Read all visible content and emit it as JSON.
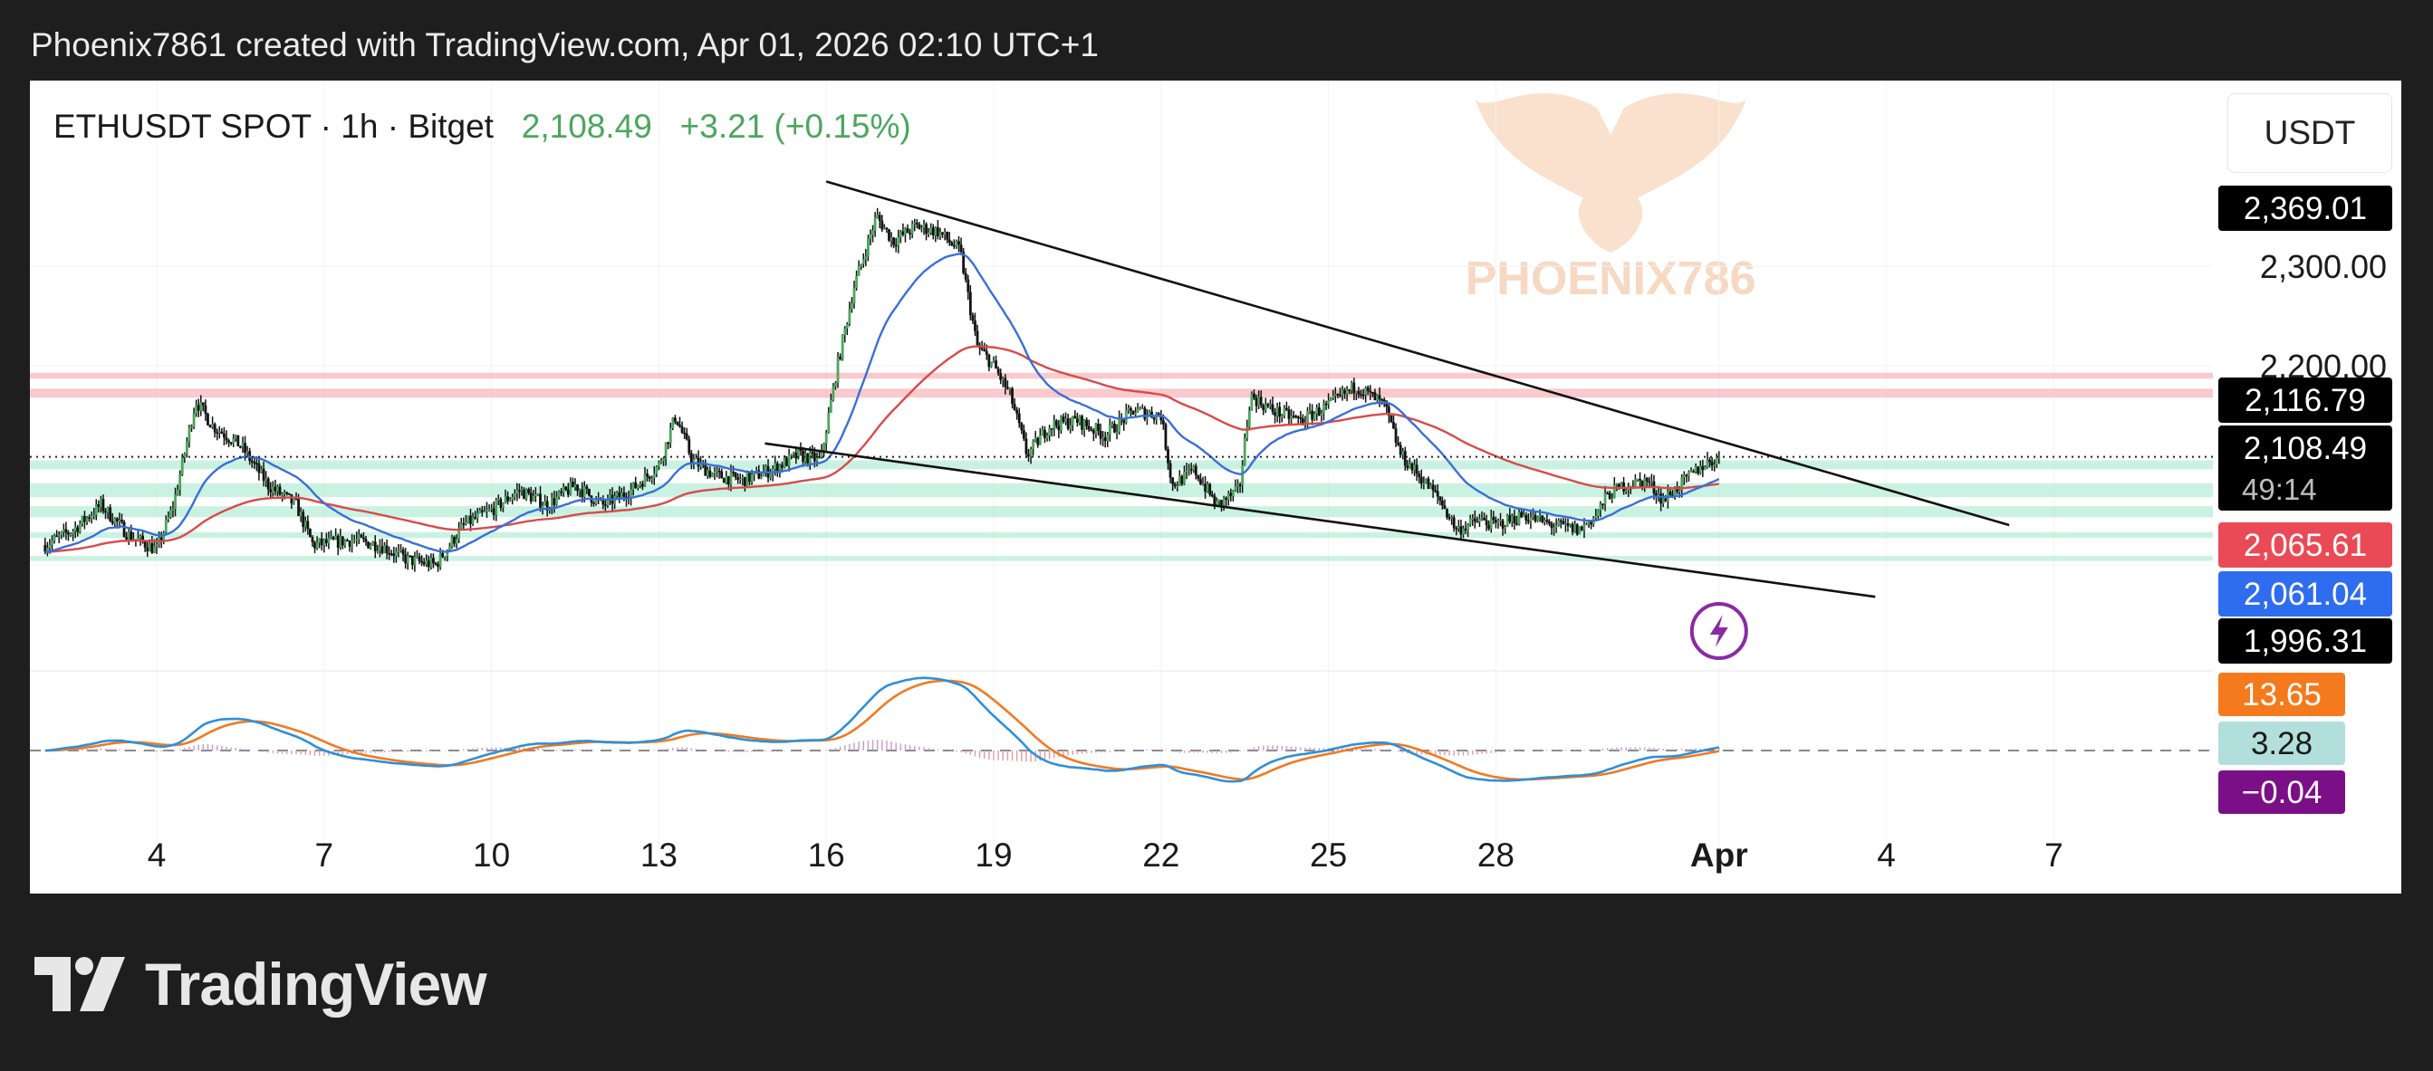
{
  "header": {
    "author_line": "Phoenix7861 created with TradingView.com, Apr 01, 2026 02:10 UTC+1"
  },
  "legend": {
    "symbol": "ETHUSDT SPOT · 1h · Bitget",
    "price": "2,108.49",
    "change": "+3.21 (+0.15%)"
  },
  "currency_button": "USDT",
  "watermark_text": "PHOENIX786",
  "footer_brand": "TradingView",
  "colors": {
    "up": "#4ca65e",
    "ma_fast": "#3a6fd8",
    "ma_slow": "#d94a4a",
    "macd": "#2f8fd8",
    "signal": "#f07a22",
    "resistance_zone": "#f6a6ad",
    "support_zone": "#9fe8cb",
    "lightning": "#8a2aa8"
  },
  "price_tags": [
    {
      "label": "2,369.01",
      "bg": "#000000",
      "fg": "#ffffff",
      "value": 2369.01
    },
    {
      "label": "2,116.79",
      "bg": "#000000",
      "fg": "#ffffff",
      "value": 2116.79
    },
    {
      "label": "2,108.49",
      "sub": "49:14",
      "bg": "#000000",
      "fg": "#ffffff",
      "value": 2108.49
    },
    {
      "label": "2,065.61",
      "bg": "#ea4a55",
      "fg": "#ffffff",
      "value": 2065.61
    },
    {
      "label": "2,061.04",
      "bg": "#2e6cf0",
      "fg": "#ffffff",
      "value": 2061.04
    },
    {
      "label": "1,996.31",
      "bg": "#000000",
      "fg": "#ffffff",
      "value": 1996.31
    }
  ],
  "indicator_tags": [
    {
      "label": "13.65",
      "bg": "#f47a1d",
      "fg": "#ffffff"
    },
    {
      "label": "3.28",
      "bg": "#b2dfdb",
      "fg": "#1a1a1a"
    },
    {
      "label": "−0.04",
      "bg": "#7b0f87",
      "fg": "#ffffff"
    }
  ],
  "chart_data": {
    "type": "candlestick",
    "symbol": "ETHUSDT SPOT",
    "interval": "1h",
    "exchange": "Bitget",
    "last_price": 2108.49,
    "x_tick_labels": [
      "4",
      "7",
      "10",
      "13",
      "16",
      "19",
      "22",
      "25",
      "28",
      "Apr",
      "4",
      "7"
    ],
    "y_tick_labels": [
      "2,300.00",
      "2,200.00"
    ],
    "y_range": [
      1960,
      2420
    ],
    "horizontal_zones": [
      {
        "kind": "resistance",
        "low": 2168,
        "high": 2177
      },
      {
        "kind": "resistance",
        "low": 2187,
        "high": 2193
      },
      {
        "kind": "support",
        "low": 2096,
        "high": 2105
      },
      {
        "kind": "support",
        "low": 2068,
        "high": 2082
      },
      {
        "kind": "support",
        "low": 2048,
        "high": 2059
      },
      {
        "kind": "support",
        "low": 2027,
        "high": 2033
      },
      {
        "kind": "support",
        "low": 2004,
        "high": 2009
      }
    ],
    "close_path": [
      {
        "day": 2.0,
        "price": 2020
      },
      {
        "day": 2.5,
        "price": 2035
      },
      {
        "day": 3.0,
        "price": 2060
      },
      {
        "day": 3.5,
        "price": 2030
      },
      {
        "day": 4.0,
        "price": 2015
      },
      {
        "day": 4.3,
        "price": 2060
      },
      {
        "day": 4.7,
        "price": 2165
      },
      {
        "day": 5.0,
        "price": 2140
      },
      {
        "day": 5.5,
        "price": 2120
      },
      {
        "day": 6.0,
        "price": 2080
      },
      {
        "day": 6.5,
        "price": 2060
      },
      {
        "day": 6.8,
        "price": 2020
      },
      {
        "day": 7.5,
        "price": 2025
      },
      {
        "day": 8.0,
        "price": 2020
      },
      {
        "day": 8.5,
        "price": 2005
      },
      {
        "day": 9.0,
        "price": 2000
      },
      {
        "day": 9.5,
        "price": 2040
      },
      {
        "day": 10.0,
        "price": 2055
      },
      {
        "day": 10.5,
        "price": 2075
      },
      {
        "day": 11.0,
        "price": 2060
      },
      {
        "day": 11.5,
        "price": 2080
      },
      {
        "day": 12.0,
        "price": 2060
      },
      {
        "day": 12.5,
        "price": 2075
      },
      {
        "day": 13.0,
        "price": 2100
      },
      {
        "day": 13.3,
        "price": 2150
      },
      {
        "day": 13.6,
        "price": 2105
      },
      {
        "day": 14.0,
        "price": 2090
      },
      {
        "day": 14.5,
        "price": 2085
      },
      {
        "day": 15.0,
        "price": 2095
      },
      {
        "day": 15.5,
        "price": 2110
      },
      {
        "day": 15.9,
        "price": 2105
      },
      {
        "day": 16.2,
        "price": 2200
      },
      {
        "day": 16.5,
        "price": 2280
      },
      {
        "day": 16.9,
        "price": 2350
      },
      {
        "day": 17.2,
        "price": 2325
      },
      {
        "day": 17.6,
        "price": 2340
      },
      {
        "day": 18.0,
        "price": 2335
      },
      {
        "day": 18.4,
        "price": 2315
      },
      {
        "day": 18.7,
        "price": 2220
      },
      {
        "day": 19.0,
        "price": 2200
      },
      {
        "day": 19.3,
        "price": 2170
      },
      {
        "day": 19.6,
        "price": 2110
      },
      {
        "day": 20.0,
        "price": 2140
      },
      {
        "day": 20.5,
        "price": 2145
      },
      {
        "day": 21.0,
        "price": 2130
      },
      {
        "day": 21.5,
        "price": 2155
      },
      {
        "day": 22.0,
        "price": 2150
      },
      {
        "day": 22.2,
        "price": 2080
      },
      {
        "day": 22.6,
        "price": 2095
      },
      {
        "day": 23.0,
        "price": 2060
      },
      {
        "day": 23.4,
        "price": 2075
      },
      {
        "day": 23.6,
        "price": 2170
      },
      {
        "day": 24.0,
        "price": 2155
      },
      {
        "day": 24.5,
        "price": 2145
      },
      {
        "day": 25.0,
        "price": 2160
      },
      {
        "day": 25.5,
        "price": 2180
      },
      {
        "day": 26.0,
        "price": 2160
      },
      {
        "day": 26.3,
        "price": 2110
      },
      {
        "day": 26.7,
        "price": 2085
      },
      {
        "day": 27.0,
        "price": 2065
      },
      {
        "day": 27.3,
        "price": 2035
      },
      {
        "day": 27.7,
        "price": 2045
      },
      {
        "day": 28.0,
        "price": 2040
      },
      {
        "day": 28.5,
        "price": 2050
      },
      {
        "day": 29.0,
        "price": 2040
      },
      {
        "day": 29.5,
        "price": 2035
      },
      {
        "day": 29.8,
        "price": 2050
      },
      {
        "day": 30.0,
        "price": 2070
      },
      {
        "day": 30.3,
        "price": 2080
      },
      {
        "day": 30.7,
        "price": 2085
      },
      {
        "day": 31.0,
        "price": 2065
      },
      {
        "day": 31.3,
        "price": 2080
      },
      {
        "day": 31.7,
        "price": 2100
      },
      {
        "day": 32.0,
        "price": 2108
      }
    ],
    "moving_averages": [
      {
        "name": "MA fast",
        "color": "#3a6fd8",
        "last": 2061.04
      },
      {
        "name": "MA slow",
        "color": "#d94a4a",
        "last": 2065.61
      }
    ],
    "trendlines": [
      {
        "from": {
          "day": 16.0,
          "price": 2385
        },
        "to": {
          "day": 37.2,
          "price": 2040
        }
      },
      {
        "from": {
          "day": 14.9,
          "price": 2122
        },
        "to": {
          "day": 34.8,
          "price": 1968
        }
      }
    ],
    "current_price_line": 2108.49,
    "oscillator": {
      "macd_last": 13.65,
      "signal_last": 3.28,
      "histogram_last": -0.04,
      "zero_line": 0
    }
  }
}
